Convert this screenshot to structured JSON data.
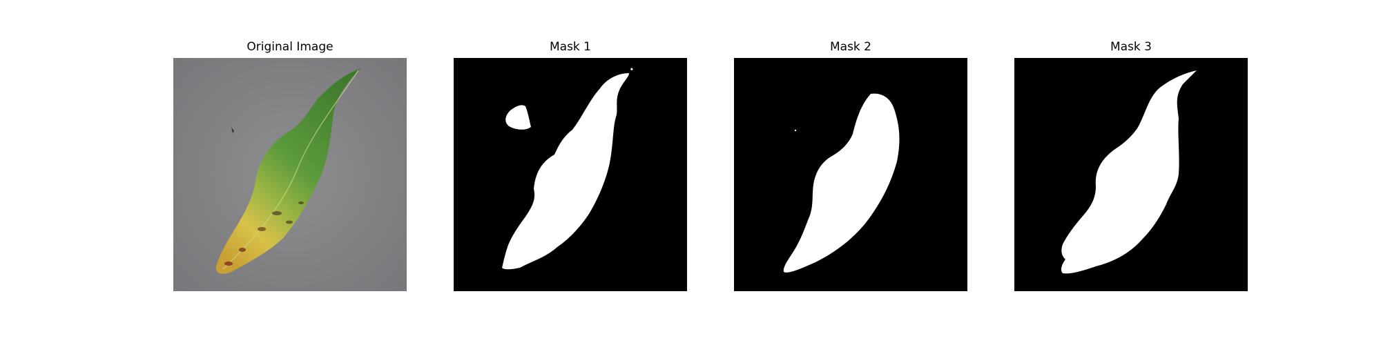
{
  "figure": {
    "panels": [
      {
        "title": "Original Image",
        "kind": "photo"
      },
      {
        "title": "Mask 1",
        "kind": "mask"
      },
      {
        "title": "Mask 2",
        "kind": "mask"
      },
      {
        "title": "Mask 3",
        "kind": "mask"
      }
    ]
  },
  "colors": {
    "background": "#ffffff",
    "mask_fg": "#ffffff",
    "mask_bg": "#000000",
    "photo_bg": "#8a8a8c",
    "leaf_green_dark": "#3f7a2c",
    "leaf_green": "#5c9a3c",
    "leaf_yellow": "#d8c24a"
  }
}
